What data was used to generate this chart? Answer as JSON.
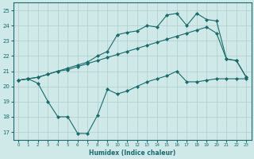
{
  "xlabel": "Humidex (Indice chaleur)",
  "bg_color": "#cfe8e8",
  "grid_color": "#aecece",
  "line_color": "#1a6b6b",
  "xlim": [
    -0.5,
    23.5
  ],
  "ylim": [
    16.5,
    25.5
  ],
  "yticks": [
    17,
    18,
    19,
    20,
    21,
    22,
    23,
    24,
    25
  ],
  "xticks": [
    0,
    1,
    2,
    3,
    4,
    5,
    6,
    7,
    8,
    9,
    10,
    11,
    12,
    13,
    14,
    15,
    16,
    17,
    18,
    19,
    20,
    21,
    22,
    23
  ],
  "line1_x": [
    0,
    1,
    2,
    3,
    4,
    5,
    6,
    7,
    8,
    9,
    10,
    11,
    12,
    13,
    14,
    15,
    16,
    17,
    18,
    19,
    20,
    21,
    22,
    23
  ],
  "line1_y": [
    20.4,
    20.5,
    20.2,
    19.0,
    18.0,
    18.0,
    16.9,
    16.9,
    18.1,
    19.8,
    19.5,
    19.7,
    20.0,
    20.3,
    20.5,
    20.7,
    21.0,
    20.3,
    20.3,
    20.4,
    20.5,
    20.5,
    20.5,
    20.5
  ],
  "line2_x": [
    0,
    1,
    2,
    3,
    4,
    5,
    6,
    7,
    8,
    9,
    10,
    11,
    12,
    13,
    14,
    15,
    16,
    17,
    18,
    19,
    20,
    21,
    22,
    23
  ],
  "line2_y": [
    20.4,
    20.5,
    20.6,
    20.8,
    21.0,
    21.1,
    21.3,
    21.5,
    21.7,
    21.9,
    22.1,
    22.3,
    22.5,
    22.7,
    22.9,
    23.1,
    23.3,
    23.5,
    23.7,
    23.9,
    23.5,
    21.8,
    21.7,
    20.6
  ],
  "line3_x": [
    0,
    1,
    2,
    3,
    4,
    5,
    6,
    7,
    8,
    9,
    10,
    11,
    12,
    13,
    14,
    15,
    16,
    17,
    18,
    19,
    20,
    21,
    22,
    23
  ],
  "line3_y": [
    20.4,
    20.5,
    20.6,
    20.8,
    21.0,
    21.2,
    21.4,
    21.6,
    22.0,
    22.3,
    23.4,
    23.55,
    23.65,
    24.0,
    23.9,
    24.7,
    24.8,
    24.0,
    24.8,
    24.4,
    24.3,
    21.8,
    21.7,
    20.6
  ]
}
